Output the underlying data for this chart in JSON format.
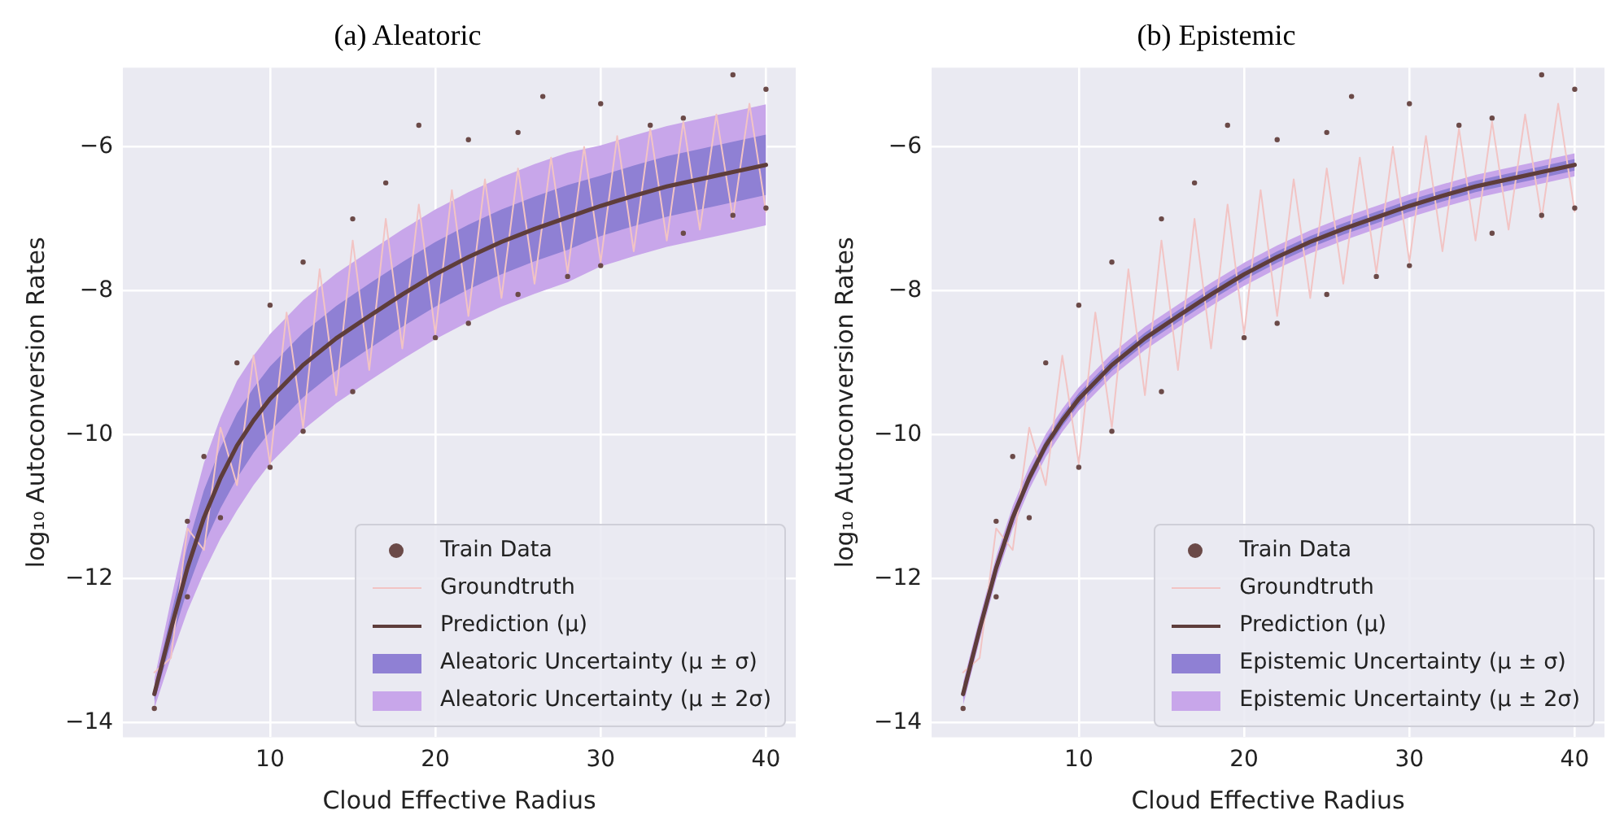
{
  "chart_data": [
    {
      "type": "line",
      "title": "(a) Aleatoric",
      "xlabel": "Cloud Effective Radius",
      "ylabel": "log₁₀ Autoconversion Rates",
      "xlim": [
        1.1,
        41.8
      ],
      "ylim": [
        -14.2,
        -4.9
      ],
      "xticks": [
        10,
        20,
        30,
        40
      ],
      "yticks": [
        -14,
        -12,
        -10,
        -8,
        -6
      ],
      "grid": true,
      "legend": "bottom right",
      "series": [
        {
          "name": "Train Data",
          "type": "scatter",
          "marker": "circle",
          "color": "#6b4a48",
          "x": [
            3,
            5,
            6,
            8,
            10,
            12,
            15,
            17,
            19,
            22,
            25,
            26.5,
            30,
            33,
            35,
            38,
            40,
            5,
            7,
            10,
            12,
            15,
            20,
            22,
            25,
            28,
            30,
            35,
            38,
            40
          ],
          "values": [
            -13.8,
            -11.2,
            -10.3,
            -9.0,
            -8.2,
            -7.6,
            -7.0,
            -6.5,
            -5.7,
            -5.9,
            -5.8,
            -5.3,
            -5.4,
            -5.7,
            -5.6,
            -5.0,
            -5.2,
            -12.25,
            -11.15,
            -10.45,
            -9.95,
            -9.4,
            -8.65,
            -8.45,
            -8.05,
            -7.8,
            -7.65,
            -7.2,
            -6.95,
            -6.85
          ]
        },
        {
          "name": "Groundtruth",
          "type": "line",
          "color": "#f2c4c4",
          "x": [
            3,
            4,
            5,
            6,
            7,
            8,
            9,
            10,
            11,
            12,
            13,
            14,
            15,
            16,
            17,
            18,
            19,
            20,
            21,
            22,
            23,
            24,
            25,
            26,
            27,
            28,
            29,
            30,
            31,
            32,
            33,
            34,
            35,
            36,
            37,
            38,
            39,
            40
          ],
          "values": [
            -13.3,
            -13.1,
            -11.3,
            -11.6,
            -9.9,
            -10.7,
            -8.9,
            -10.4,
            -8.3,
            -9.9,
            -7.7,
            -9.45,
            -7.3,
            -9.1,
            -7.0,
            -8.8,
            -6.8,
            -8.6,
            -6.6,
            -8.35,
            -6.45,
            -8.1,
            -6.3,
            -7.9,
            -6.15,
            -7.75,
            -6.0,
            -7.6,
            -5.85,
            -7.45,
            -5.75,
            -7.3,
            -5.65,
            -7.15,
            -5.55,
            -7.0,
            -5.4,
            -6.9
          ]
        },
        {
          "name": "Prediction (μ)",
          "type": "line",
          "color": "#5e3d3b",
          "x": [
            3,
            4,
            5,
            6,
            7,
            8,
            9,
            10,
            12,
            14,
            16,
            18,
            20,
            22,
            24,
            26,
            28,
            30,
            32,
            34,
            36,
            38,
            40
          ],
          "values": [
            -13.6,
            -12.7,
            -11.85,
            -11.15,
            -10.6,
            -10.15,
            -9.8,
            -9.5,
            -9.03,
            -8.66,
            -8.35,
            -8.05,
            -7.77,
            -7.53,
            -7.32,
            -7.14,
            -6.98,
            -6.82,
            -6.68,
            -6.55,
            -6.45,
            -6.35,
            -6.25
          ]
        },
        {
          "name": "Aleatoric Uncertainty (μ ± σ)",
          "type": "line",
          "color": "#8f80d4",
          "x": [
            3,
            4,
            5,
            6,
            7,
            8,
            9,
            10,
            12,
            14,
            16,
            18,
            20,
            22,
            24,
            26,
            28,
            30,
            32,
            34,
            36,
            38,
            40
          ],
          "values": [
            null,
            null,
            null,
            null,
            null,
            null,
            null,
            null,
            null,
            null,
            null,
            null,
            null,
            null,
            null,
            null,
            null,
            null,
            null,
            null,
            null,
            null,
            null
          ],
          "lower": [
            -13.7,
            -12.9,
            -12.15,
            -11.53,
            -11.02,
            -10.6,
            -10.25,
            -9.95,
            -9.48,
            -9.11,
            -8.8,
            -8.5,
            -8.22,
            -7.98,
            -7.77,
            -7.59,
            -7.43,
            -7.24,
            -7.1,
            -6.97,
            -6.87,
            -6.77,
            -6.67
          ],
          "upper": [
            -13.5,
            -12.5,
            -11.55,
            -10.77,
            -10.18,
            -9.7,
            -9.35,
            -9.05,
            -8.58,
            -8.21,
            -7.9,
            -7.6,
            -7.32,
            -7.08,
            -6.87,
            -6.69,
            -6.53,
            -6.4,
            -6.26,
            -6.13,
            -6.03,
            -5.93,
            -5.83
          ]
        },
        {
          "name": "Aleatoric Uncertainty (μ ± 2σ)",
          "type": "line",
          "color": "#c8a6ea",
          "x": [
            3,
            4,
            5,
            6,
            7,
            8,
            9,
            10,
            12,
            14,
            16,
            18,
            20,
            22,
            24,
            26,
            28,
            30,
            32,
            34,
            36,
            38,
            40
          ],
          "values": [
            null,
            null,
            null,
            null,
            null,
            null,
            null,
            null,
            null,
            null,
            null,
            null,
            null,
            null,
            null,
            null,
            null,
            null,
            null,
            null,
            null,
            null,
            null
          ],
          "lower": [
            -13.8,
            -13.1,
            -12.45,
            -11.91,
            -11.44,
            -11.05,
            -10.7,
            -10.4,
            -9.93,
            -9.56,
            -9.25,
            -8.95,
            -8.67,
            -8.43,
            -8.22,
            -8.04,
            -7.88,
            -7.66,
            -7.52,
            -7.39,
            -7.29,
            -7.19,
            -7.09
          ],
          "upper": [
            -13.4,
            -12.3,
            -11.25,
            -10.39,
            -9.76,
            -9.25,
            -8.9,
            -8.6,
            -8.13,
            -7.76,
            -7.45,
            -7.15,
            -6.87,
            -6.63,
            -6.42,
            -6.24,
            -6.08,
            -5.98,
            -5.84,
            -5.71,
            -5.61,
            -5.51,
            -5.41
          ]
        }
      ]
    },
    {
      "type": "line",
      "title": "(b) Epistemic",
      "xlabel": "Cloud Effective Radius",
      "ylabel": "log₁₀ Autoconversion Rates",
      "xlim": [
        1.1,
        41.8
      ],
      "ylim": [
        -14.2,
        -4.9
      ],
      "xticks": [
        10,
        20,
        30,
        40
      ],
      "yticks": [
        -14,
        -12,
        -10,
        -8,
        -6
      ],
      "grid": true,
      "legend": "bottom right",
      "series": [
        {
          "name": "Train Data",
          "type": "scatter",
          "marker": "circle",
          "color": "#6b4a48",
          "x": [
            3,
            5,
            6,
            8,
            10,
            12,
            15,
            17,
            19,
            22,
            25,
            26.5,
            30,
            33,
            35,
            38,
            40,
            5,
            7,
            10,
            12,
            15,
            20,
            22,
            25,
            28,
            30,
            35,
            38,
            40
          ],
          "values": [
            -13.8,
            -11.2,
            -10.3,
            -9.0,
            -8.2,
            -7.6,
            -7.0,
            -6.5,
            -5.7,
            -5.9,
            -5.8,
            -5.3,
            -5.4,
            -5.7,
            -5.6,
            -5.0,
            -5.2,
            -12.25,
            -11.15,
            -10.45,
            -9.95,
            -9.4,
            -8.65,
            -8.45,
            -8.05,
            -7.8,
            -7.65,
            -7.2,
            -6.95,
            -6.85
          ]
        },
        {
          "name": "Groundtruth",
          "type": "line",
          "color": "#f2c4c4",
          "x": [
            3,
            4,
            5,
            6,
            7,
            8,
            9,
            10,
            11,
            12,
            13,
            14,
            15,
            16,
            17,
            18,
            19,
            20,
            21,
            22,
            23,
            24,
            25,
            26,
            27,
            28,
            29,
            30,
            31,
            32,
            33,
            34,
            35,
            36,
            37,
            38,
            39,
            40
          ],
          "values": [
            -13.3,
            -13.1,
            -11.3,
            -11.6,
            -9.9,
            -10.7,
            -8.9,
            -10.4,
            -8.3,
            -9.9,
            -7.7,
            -9.45,
            -7.3,
            -9.1,
            -7.0,
            -8.8,
            -6.8,
            -8.6,
            -6.6,
            -8.35,
            -6.45,
            -8.1,
            -6.3,
            -7.9,
            -6.15,
            -7.75,
            -6.0,
            -7.6,
            -5.85,
            -7.45,
            -5.75,
            -7.3,
            -5.65,
            -7.15,
            -5.55,
            -7.0,
            -5.4,
            -6.9
          ]
        },
        {
          "name": "Prediction (μ)",
          "type": "line",
          "color": "#5e3d3b",
          "x": [
            3,
            4,
            5,
            6,
            7,
            8,
            9,
            10,
            12,
            14,
            16,
            18,
            20,
            22,
            24,
            26,
            28,
            30,
            32,
            34,
            36,
            38,
            40
          ],
          "values": [
            -13.6,
            -12.7,
            -11.85,
            -11.15,
            -10.6,
            -10.15,
            -9.8,
            -9.5,
            -9.03,
            -8.66,
            -8.35,
            -8.05,
            -7.77,
            -7.53,
            -7.32,
            -7.14,
            -6.98,
            -6.82,
            -6.68,
            -6.55,
            -6.45,
            -6.35,
            -6.25
          ]
        },
        {
          "name": "Epistemic Uncertainty (μ ± σ)",
          "type": "line",
          "color": "#8f80d4",
          "x": [
            3,
            4,
            5,
            6,
            7,
            8,
            9,
            10,
            12,
            14,
            16,
            18,
            20,
            22,
            24,
            26,
            28,
            30,
            32,
            34,
            36,
            38,
            40
          ],
          "values": [
            null,
            null,
            null,
            null,
            null,
            null,
            null,
            null,
            null,
            null,
            null,
            null,
            null,
            null,
            null,
            null,
            null,
            null,
            null,
            null,
            null,
            null,
            null
          ],
          "lower": [
            -13.68,
            -12.78,
            -11.93,
            -11.23,
            -10.68,
            -10.23,
            -9.88,
            -9.58,
            -9.11,
            -8.74,
            -8.43,
            -8.13,
            -7.85,
            -7.61,
            -7.4,
            -7.22,
            -7.06,
            -6.9,
            -6.76,
            -6.63,
            -6.53,
            -6.43,
            -6.33
          ],
          "upper": [
            -13.52,
            -12.62,
            -11.77,
            -11.07,
            -10.52,
            -10.07,
            -9.72,
            -9.42,
            -8.95,
            -8.58,
            -8.27,
            -7.97,
            -7.69,
            -7.45,
            -7.24,
            -7.06,
            -6.9,
            -6.74,
            -6.6,
            -6.47,
            -6.37,
            -6.27,
            -6.17
          ]
        },
        {
          "name": "Epistemic Uncertainty (μ ± 2σ)",
          "type": "line",
          "color": "#c8a6ea",
          "x": [
            3,
            4,
            5,
            6,
            7,
            8,
            9,
            10,
            12,
            14,
            16,
            18,
            20,
            22,
            24,
            26,
            28,
            30,
            32,
            34,
            36,
            38,
            40
          ],
          "values": [
            null,
            null,
            null,
            null,
            null,
            null,
            null,
            null,
            null,
            null,
            null,
            null,
            null,
            null,
            null,
            null,
            null,
            null,
            null,
            null,
            null,
            null,
            null
          ],
          "lower": [
            -13.76,
            -12.86,
            -12.01,
            -11.31,
            -10.76,
            -10.31,
            -9.96,
            -9.66,
            -9.19,
            -8.82,
            -8.51,
            -8.21,
            -7.93,
            -7.69,
            -7.48,
            -7.3,
            -7.14,
            -6.98,
            -6.84,
            -6.71,
            -6.61,
            -6.51,
            -6.41
          ],
          "upper": [
            -13.44,
            -12.54,
            -11.69,
            -10.99,
            -10.44,
            -9.99,
            -9.64,
            -9.34,
            -8.87,
            -8.5,
            -8.19,
            -7.89,
            -7.61,
            -7.37,
            -7.16,
            -6.98,
            -6.82,
            -6.66,
            -6.52,
            -6.39,
            -6.29,
            -6.19,
            -6.09
          ]
        }
      ]
    }
  ]
}
